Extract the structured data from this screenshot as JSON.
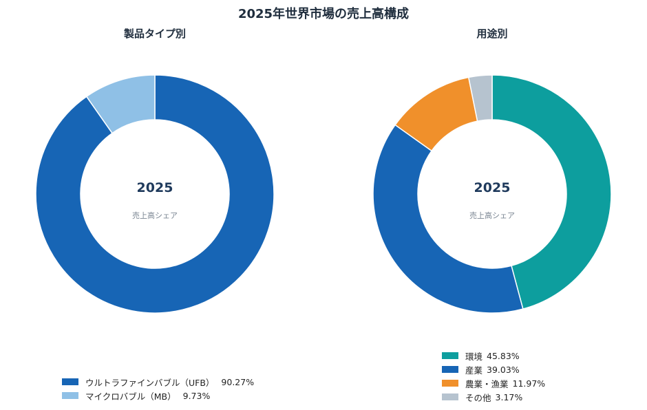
{
  "title": "2025年世界市場の売上高構成",
  "chart_data": [
    {
      "type": "pie",
      "subtitle": "製品タイプ別",
      "center_title": "2025",
      "center_sub": "売上高シェア",
      "slices": [
        {
          "label": "ウルトラファインバブル（UFB）",
          "value": 90.27,
          "value_text": "90.27%",
          "color": "#1765b5"
        },
        {
          "label": "マイクロバブル（MB）",
          "value": 9.73,
          "value_text": "9.73%",
          "color": "#8fc0e6"
        }
      ]
    },
    {
      "type": "pie",
      "subtitle": "用途別",
      "center_title": "2025",
      "center_sub": "売上高シェア",
      "slices": [
        {
          "label": "環境",
          "value": 45.83,
          "value_text": "45.83%",
          "color": "#0d9e9e"
        },
        {
          "label": "産業",
          "value": 39.03,
          "value_text": "39.03%",
          "color": "#1765b5"
        },
        {
          "label": "農業・漁業",
          "value": 11.97,
          "value_text": "11.97%",
          "color": "#f0902b"
        },
        {
          "label": "その他",
          "value": 3.17,
          "value_text": "3.17%",
          "color": "#b6c3cf"
        }
      ]
    }
  ]
}
